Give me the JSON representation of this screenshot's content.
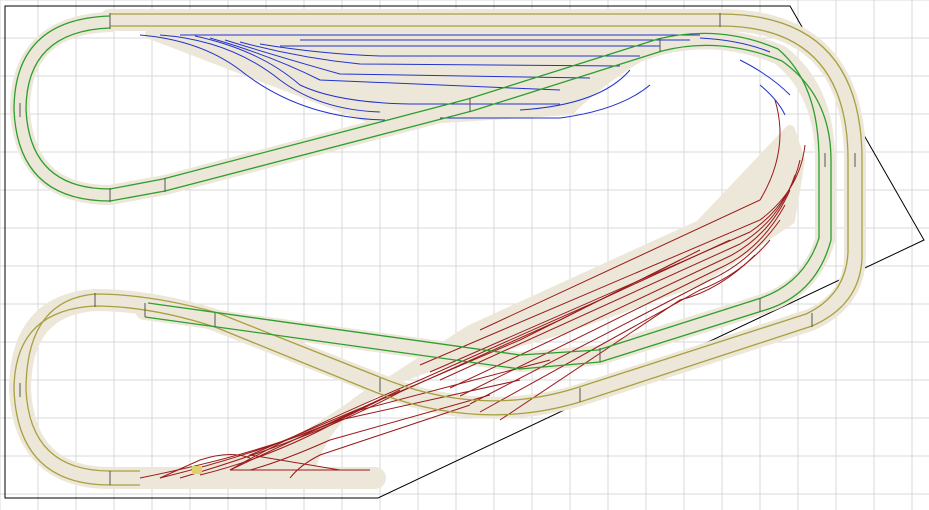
{
  "view": {
    "type": "track-layout-plan",
    "grid": true,
    "baseboard": "polygon",
    "yard_count": 2
  },
  "colors": {
    "background": "#ffffff",
    "grid": "#d8d8d8",
    "baseboard_edge": "#000000",
    "roadbed": "#ece7d8",
    "loop_main": "#2e9e2e",
    "loop_outer": "#a8a040",
    "yard_upper": "#2233cc",
    "yard_lower": "#9a1a1a",
    "marker": "#e0d070"
  },
  "loops": [
    {
      "id": "upper-loop",
      "color_key": "loop_main"
    },
    {
      "id": "lower-loop",
      "color_key": "loop_outer"
    }
  ],
  "yards": [
    {
      "id": "upper-yard",
      "color_key": "yard_upper",
      "tracks": 11
    },
    {
      "id": "lower-yard",
      "color_key": "yard_lower",
      "tracks": 16
    }
  ]
}
